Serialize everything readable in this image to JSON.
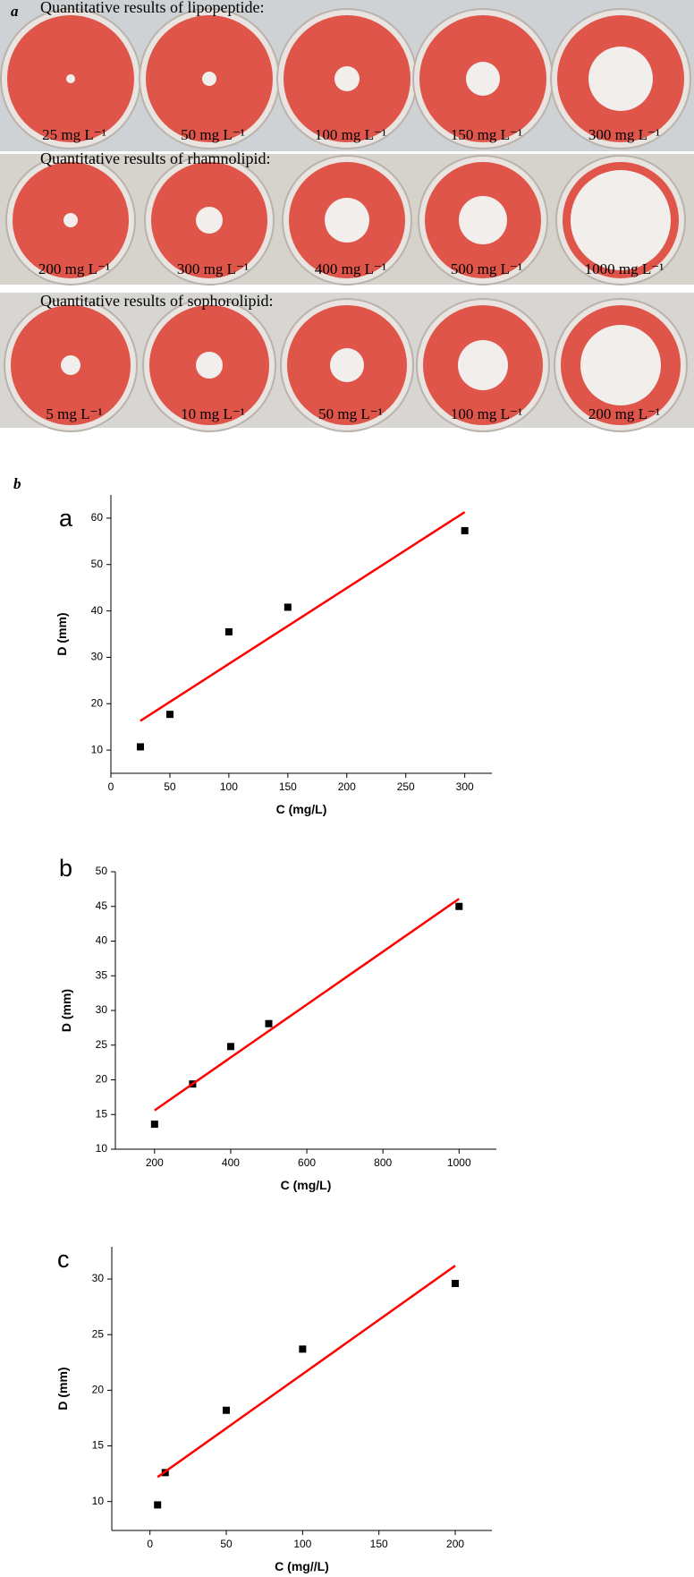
{
  "figure_labels": {
    "a": "a",
    "b": "b"
  },
  "photo_panel": {
    "rows": [
      {
        "title": "Quantitative results of lipopeptide:",
        "labels": [
          "25 mg L⁻¹",
          "50 mg L⁻¹",
          "100 mg L⁻¹",
          "150 mg L⁻¹",
          "300 mg L⁻¹"
        ]
      },
      {
        "title": "Quantitative results of rhamnolipid:",
        "labels": [
          "200 mg L⁻¹",
          "300 mg L⁻¹",
          "400 mg L⁻¹",
          "500 mg L⁻¹",
          "1000 mg L⁻¹"
        ]
      },
      {
        "title": "Quantitative results of sophorolipid:",
        "labels": [
          "5 mg L⁻¹",
          "10 mg L⁻¹",
          "50 mg L⁻¹",
          "100 mg L⁻¹",
          "200 mg L⁻¹"
        ]
      }
    ]
  },
  "chart_data": [
    {
      "type": "scatter",
      "label": "a",
      "xlabel": "C (mg/L)",
      "ylabel": "D (mm)",
      "xlim": [
        0,
        323
      ],
      "ylim": [
        5,
        65
      ],
      "xticks": [
        0,
        50,
        100,
        150,
        200,
        250,
        300
      ],
      "yticks": [
        10,
        20,
        30,
        40,
        50,
        60
      ],
      "series": [
        {
          "color": "#000000",
          "marker": "square",
          "x": [
            25,
            50,
            100,
            150,
            300
          ],
          "values": [
            10.7,
            17.7,
            35.5,
            40.8,
            57.3
          ]
        },
        {
          "color": "#ff0000",
          "style": "line",
          "x": [
            25,
            300
          ],
          "values": [
            16.3,
            61.3
          ]
        }
      ]
    },
    {
      "type": "scatter",
      "label": "b",
      "xlabel": "C (mg/L)",
      "ylabel": "D (mm)",
      "xlim": [
        97,
        1098
      ],
      "ylim": [
        10,
        50
      ],
      "xticks": [
        200,
        400,
        600,
        800,
        1000
      ],
      "yticks": [
        10,
        15,
        20,
        25,
        30,
        35,
        40,
        45,
        50
      ],
      "series": [
        {
          "color": "#000000",
          "marker": "square",
          "x": [
            200,
            300,
            400,
            500,
            1000
          ],
          "values": [
            13.6,
            19.4,
            24.8,
            28.1,
            45.0
          ]
        },
        {
          "color": "#ff0000",
          "style": "line",
          "x": [
            200,
            1000
          ],
          "values": [
            15.6,
            46.1
          ]
        }
      ]
    },
    {
      "type": "scatter",
      "label": "c",
      "xlabel": "C (mg//L)",
      "ylabel": "D (mm)",
      "xlim": [
        -25,
        224
      ],
      "ylim": [
        7.4,
        32.9
      ],
      "xticks": [
        0,
        50,
        100,
        150,
        200
      ],
      "yticks": [
        10,
        15,
        20,
        25,
        30
      ],
      "series": [
        {
          "color": "#000000",
          "marker": "square",
          "x": [
            5,
            10,
            50,
            100,
            200
          ],
          "values": [
            9.7,
            12.6,
            18.2,
            23.7,
            29.6
          ]
        },
        {
          "color": "#ff0000",
          "style": "line",
          "x": [
            5,
            200
          ],
          "values": [
            12.2,
            31.2
          ]
        }
      ]
    }
  ]
}
